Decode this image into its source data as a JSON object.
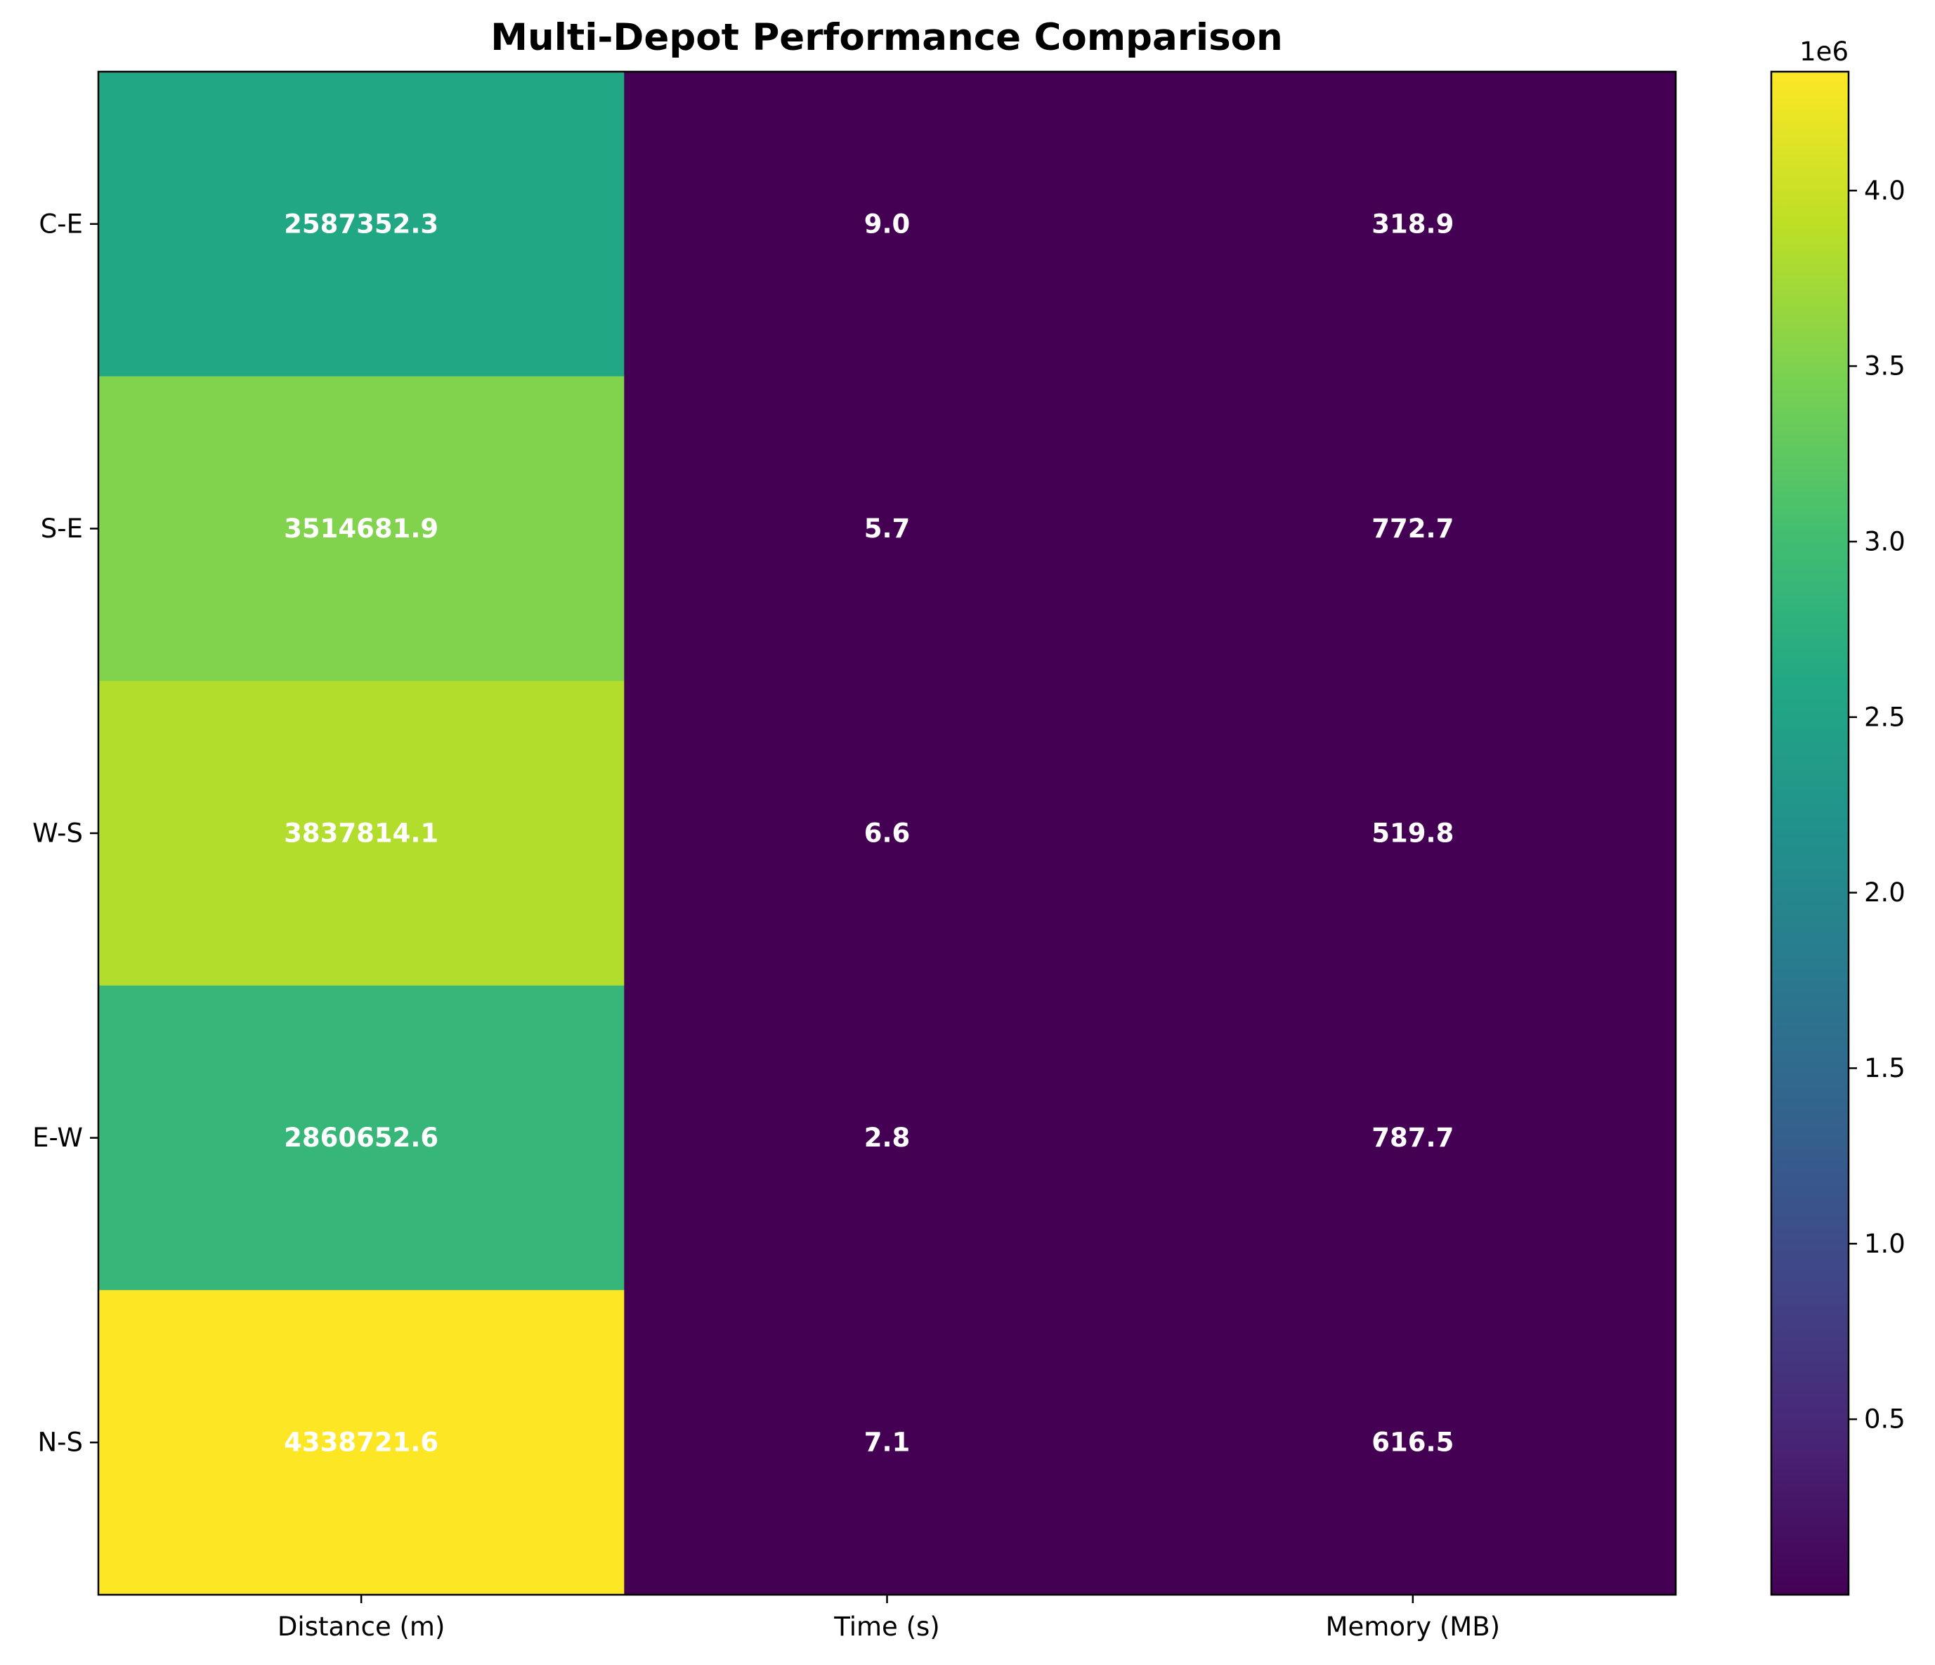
{
  "chart_data": {
    "type": "heatmap",
    "title": "Multi-Depot Performance Comparison",
    "columns": [
      "Distance (m)",
      "Time (s)",
      "Memory (MB)"
    ],
    "rows": [
      "C-E",
      "S-E",
      "W-S",
      "E-W",
      "N-S"
    ],
    "values": [
      [
        2587352.3,
        9.0,
        318.9
      ],
      [
        3514681.9,
        5.7,
        772.7
      ],
      [
        3837814.1,
        6.6,
        519.8
      ],
      [
        2860652.6,
        2.8,
        787.7
      ],
      [
        4338721.6,
        7.1,
        616.5
      ]
    ],
    "cell_labels": [
      [
        "2587352.3",
        "9.0",
        "318.9"
      ],
      [
        "3514681.9",
        "5.7",
        "772.7"
      ],
      [
        "3837814.1",
        "6.6",
        "519.8"
      ],
      [
        "2860652.6",
        "2.8",
        "787.7"
      ],
      [
        "4338721.6",
        "7.1",
        "616.5"
      ]
    ],
    "colormap": "viridis",
    "colorbar": {
      "min": 2.8,
      "max": 4338721.6,
      "ticks": [
        500000,
        1000000,
        1500000,
        2000000,
        2500000,
        3000000,
        3500000,
        4000000
      ],
      "tick_labels": [
        "0.5",
        "1.0",
        "1.5",
        "2.0",
        "2.5",
        "3.0",
        "3.5",
        "4.0"
      ],
      "offset_label": "1e6"
    },
    "cell_text_color": "#ffffff"
  }
}
